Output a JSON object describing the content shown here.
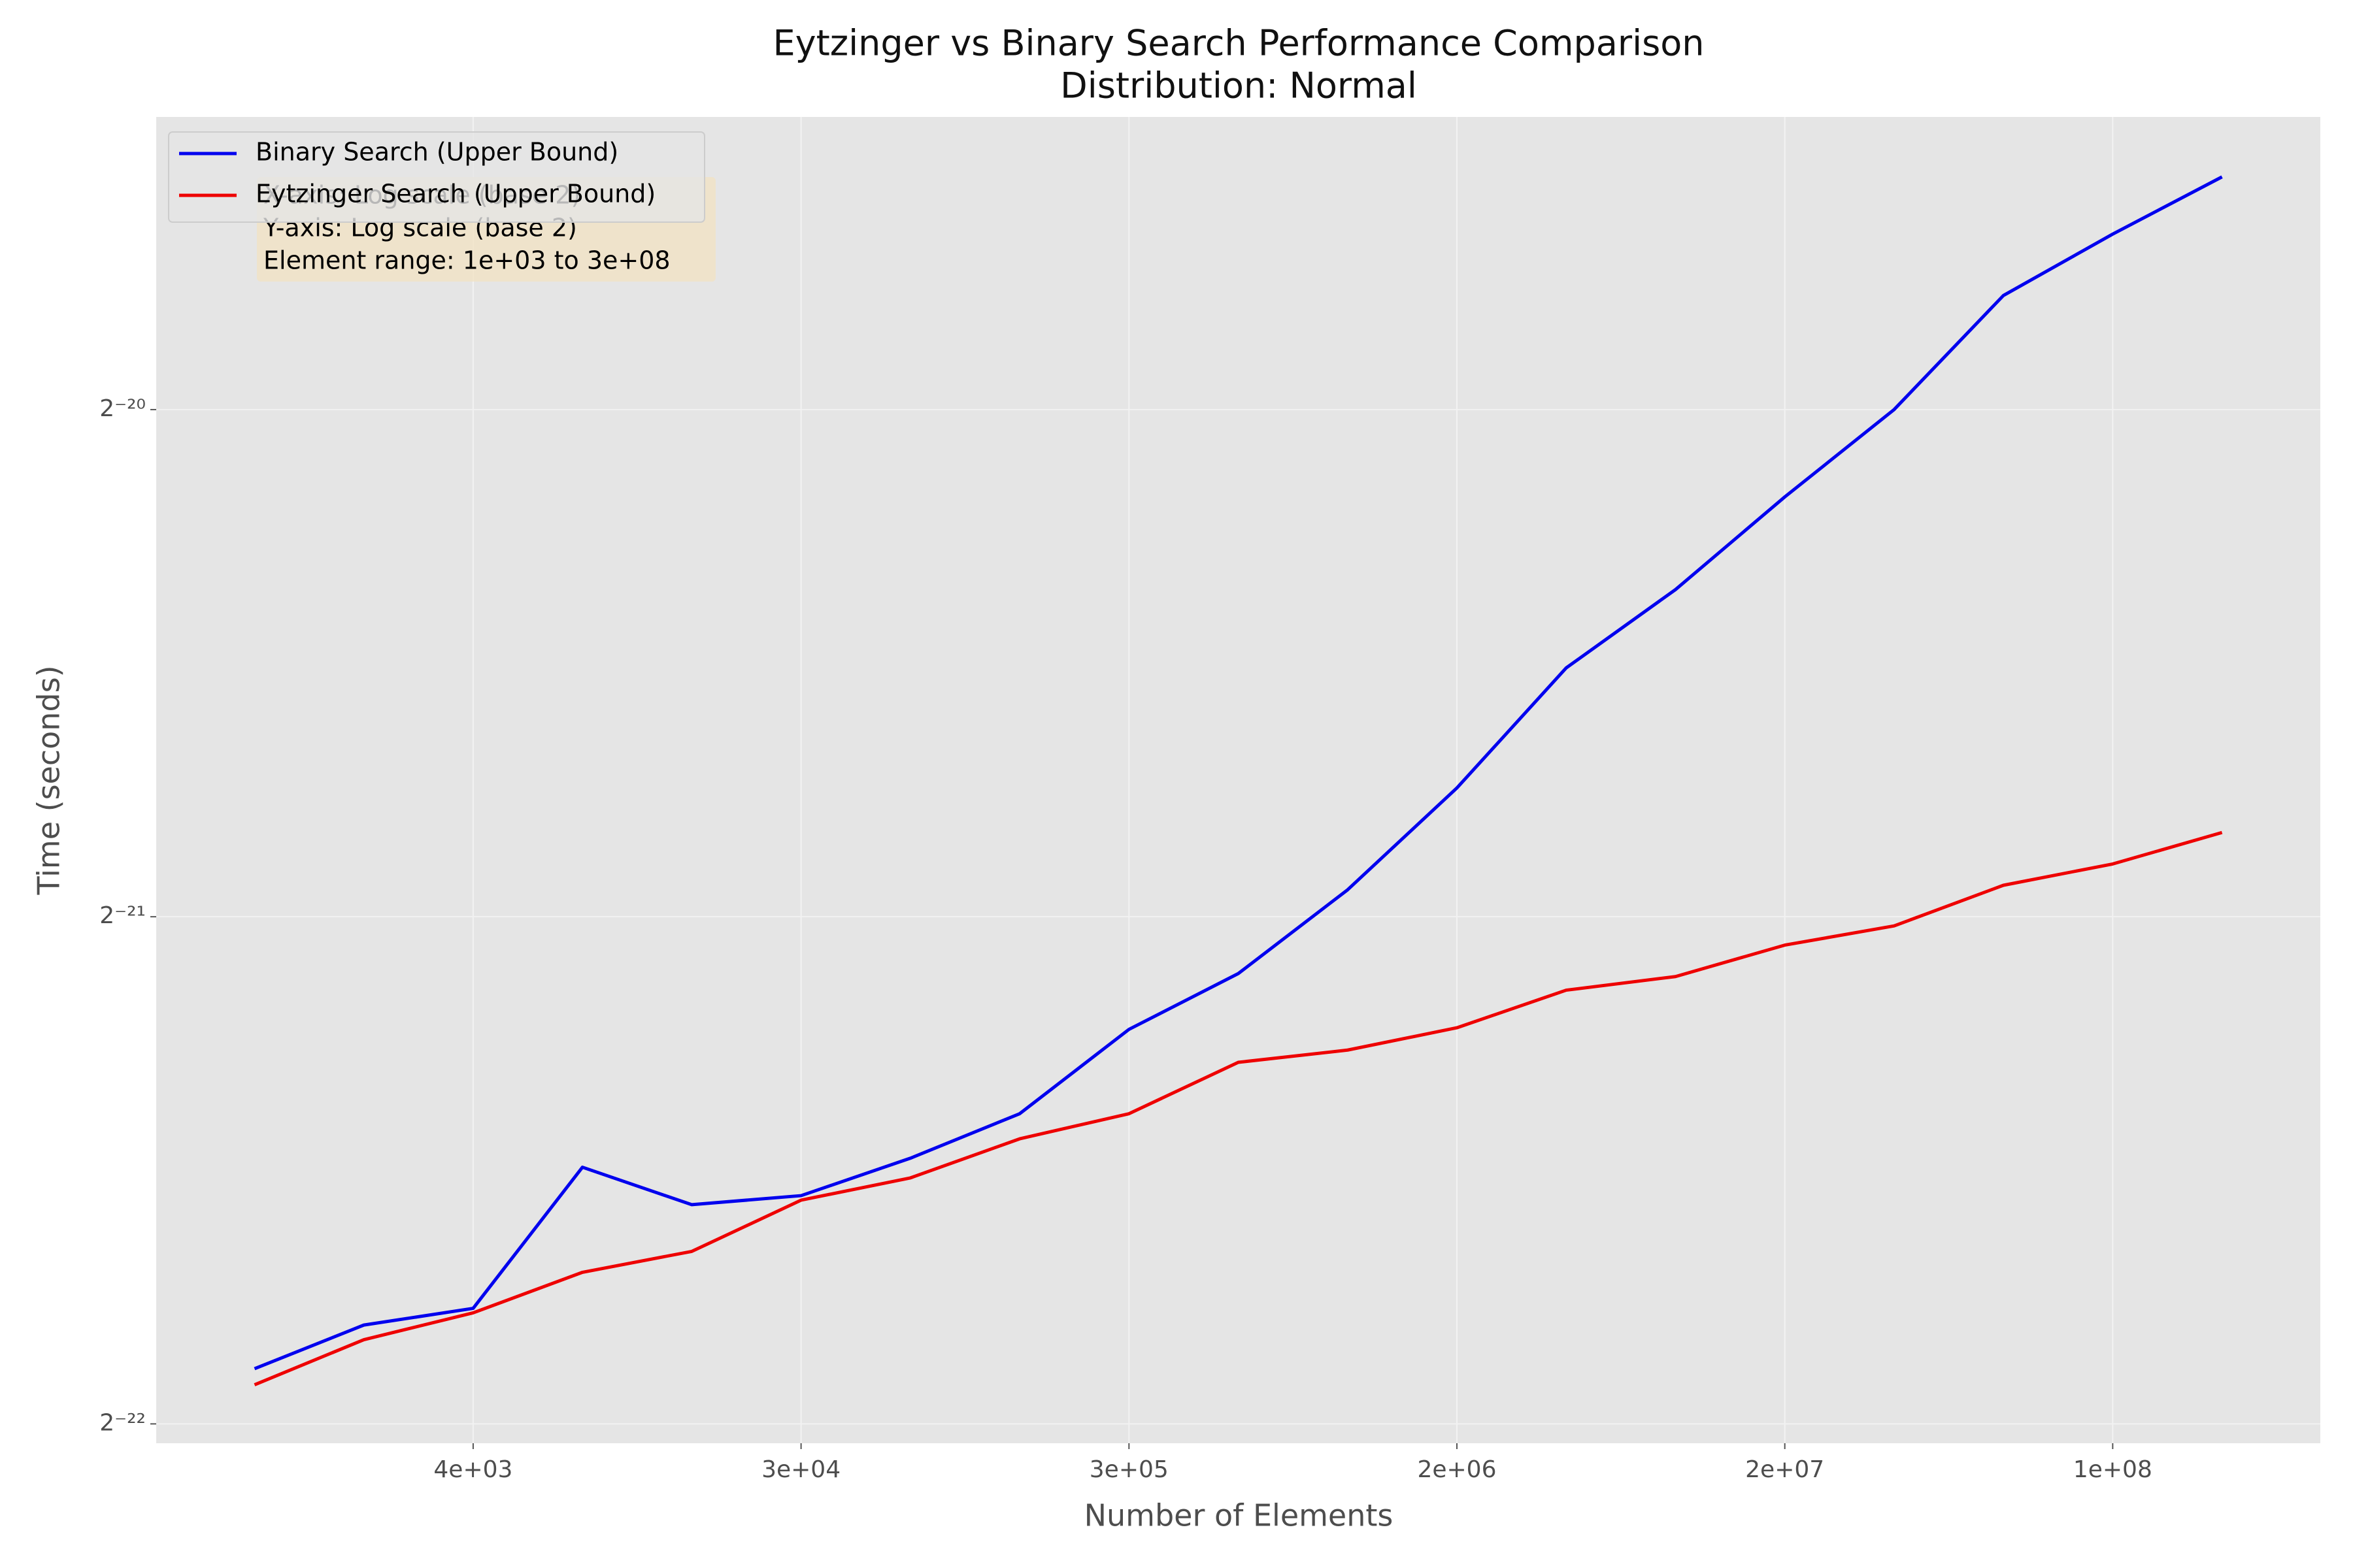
{
  "chart_data": {
    "type": "line",
    "title": "Eytzinger vs Binary Search Performance Comparison",
    "subtitle": "Distribution: Normal",
    "x_label": "Number of Elements",
    "y_label": "Time (seconds)",
    "annotation": [
      "X-axis: Log scale (base 2)",
      "Y-axis: Log scale (base 2)",
      "Element range: 1e+03 to 3e+08"
    ],
    "x": [
      1000,
      2000,
      4000,
      8000,
      16000,
      32000,
      64000,
      128000,
      256000,
      512000,
      1024000,
      2048000,
      4096000,
      8192000,
      16384000,
      32768000,
      65536000,
      131072000,
      262144000
    ],
    "series": [
      {
        "name": "Binary Search (Upper Bound)",
        "color": "#0000ee",
        "values": [
          2.571e-07,
          2.729e-07,
          2.792e-07,
          3.386e-07,
          3.217e-07,
          3.257e-07,
          3.428e-07,
          3.643e-07,
          4.088e-07,
          4.412e-07,
          4.947e-07,
          5.686e-07,
          6.7e-07,
          7.457e-07,
          8.464e-07,
          9.537e-07,
          1.1146e-06,
          1.2122e-06,
          1.3108e-06
        ]
      },
      {
        "name": "Eytzinger Search (Upper Bound)",
        "color": "#ee0000",
        "values": [
          2.515e-07,
          2.675e-07,
          2.775e-07,
          2.933e-07,
          3.018e-07,
          3.237e-07,
          3.337e-07,
          3.52e-07,
          3.643e-07,
          3.908e-07,
          3.974e-07,
          4.097e-07,
          4.313e-07,
          4.394e-07,
          4.587e-07,
          4.709e-07,
          4.978e-07,
          5.125e-07,
          5.35e-07
        ]
      }
    ],
    "xscale": "log2",
    "yscale": "log2",
    "xlim": [
      536,
      489000000
    ],
    "ylim": [
      2.322e-07,
      1.4227e-06
    ],
    "xticks": [
      {
        "value": 4000,
        "label": "4e+03"
      },
      {
        "value": 32000,
        "label": "3e+04"
      },
      {
        "value": 256000,
        "label": "3e+05"
      },
      {
        "value": 2048000,
        "label": "2e+06"
      },
      {
        "value": 16384000,
        "label": "2e+07"
      },
      {
        "value": 131072000,
        "label": "1e+08"
      }
    ],
    "yticks": [
      {
        "value": 2.384185791015625e-07,
        "label": "2⁻²²"
      },
      {
        "value": 4.76837158203125e-07,
        "label": "2⁻²¹"
      },
      {
        "value": 9.5367431640625e-07,
        "label": "2⁻²⁰"
      }
    ],
    "grid": true,
    "legend": "upper left"
  }
}
